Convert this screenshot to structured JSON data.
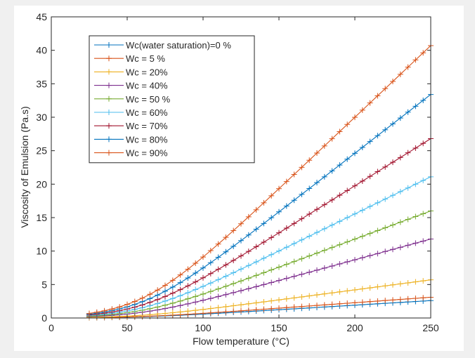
{
  "chart_data": {
    "type": "line",
    "xlabel": "Flow temperature (°C)",
    "ylabel": "Viscosity of Emulsion (Pa.s)",
    "xlim": [
      0,
      250
    ],
    "ylim": [
      0,
      45
    ],
    "xticks": [
      0,
      50,
      100,
      150,
      200,
      250
    ],
    "yticks": [
      0,
      5,
      10,
      15,
      20,
      25,
      30,
      35,
      40,
      45
    ],
    "xtick_labels": [
      "0",
      "50",
      "100",
      "150",
      "200",
      "250"
    ],
    "ytick_labels": [
      "0",
      "5",
      "10",
      "15",
      "20",
      "25",
      "30",
      "35",
      "40",
      "45"
    ],
    "grid": false,
    "legend_position": "top-left",
    "marker": "plus",
    "x_range": [
      25,
      250
    ],
    "x_step": 5,
    "series": [
      {
        "name": "Wc(water saturation)=0 %",
        "color": "#0072BD",
        "final_value": 2.6
      },
      {
        "name": "Wc = 5 %",
        "color": "#D95319",
        "final_value": 3.1
      },
      {
        "name": "Wc = 20%",
        "color": "#EDB120",
        "final_value": 5.7
      },
      {
        "name": "Wc = 40%",
        "color": "#7E2F8E",
        "final_value": 11.8
      },
      {
        "name": "Wc = 50 %",
        "color": "#77AC30",
        "final_value": 16.0
      },
      {
        "name": "Wc = 60%",
        "color": "#4DBEEE",
        "final_value": 21.1
      },
      {
        "name": "Wc = 70%",
        "color": "#A2142F",
        "final_value": 26.8
      },
      {
        "name": "Wc = 80%",
        "color": "#0072BD",
        "final_value": 33.4
      },
      {
        "name": "Wc = 90%",
        "color": "#D95319",
        "final_value": 40.7
      }
    ]
  }
}
